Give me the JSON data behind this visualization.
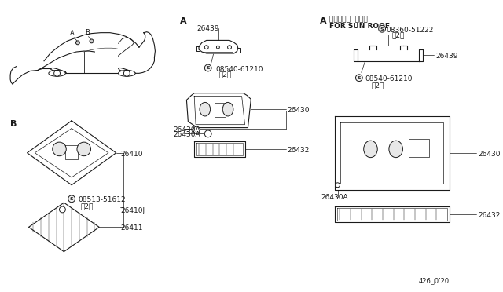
{
  "bg_color": "#ffffff",
  "line_color": "#1a1a1a",
  "text_color": "#1a1a1a",
  "fig_width": 6.4,
  "fig_height": 3.72,
  "dpi": 100,
  "labels": {
    "A_center": "A",
    "A_right": "A",
    "B_left": "B",
    "sun_roof_jp": "サンルーフ  シヨウ",
    "sun_roof_en": "FOR SUN ROOF",
    "p26439": "26439",
    "p08540_61210": "08540-61210",
    "p2": "（2）",
    "p26430A": "26430A",
    "p26430": "26430",
    "p26432": "26432",
    "p08513_51612": "08513-51612",
    "p26410": "26410",
    "p26410J": "26410J",
    "p26411": "26411",
    "p08360_51222": "08360-51222",
    "p26439_r": "26439",
    "p08540_61210_r": "08540-61210",
    "p26430_r": "26430",
    "p26430A_r": "26430A",
    "p26432_r": "26432",
    "ref": "426・0’20"
  }
}
